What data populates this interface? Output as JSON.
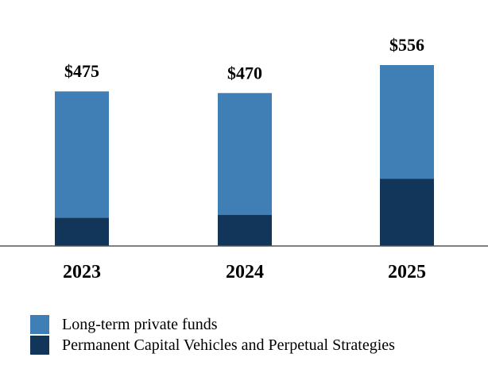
{
  "chart_data": {
    "type": "bar",
    "stacked": true,
    "categories": [
      "2023",
      "2024",
      "2025"
    ],
    "totals": [
      "$475",
      "$470",
      "$556"
    ],
    "series": [
      {
        "name": "Permanent Capital Vehicles and Perpetual Strategies",
        "color": "#12365a",
        "values": [
          87,
          96,
          207
        ]
      },
      {
        "name": "Long-term private funds",
        "color": "#3f7fb6",
        "values": [
          388,
          374,
          349
        ]
      }
    ],
    "ylim": [
      0,
      556
    ],
    "grid": false,
    "legend_position": "bottom-left"
  }
}
